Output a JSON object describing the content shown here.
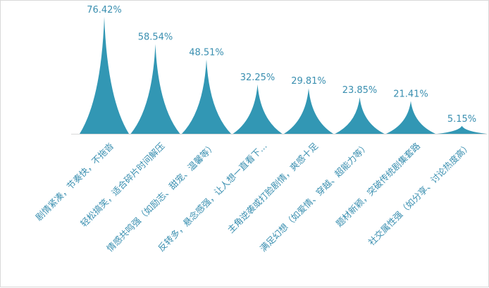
{
  "chart_data": {
    "type": "bar",
    "shape": "pointed-spike",
    "categories": [
      "剧情紧凑，节奏快，不拖沓",
      "轻松搞笑，适合碎片时间解压",
      "情感共鸣强（如励志、甜宠、温馨等）",
      "反转多，悬念感强，让人想一直看下...",
      "主角逆袭或打脸剧情，爽感十足",
      "满足幻想（如爱情、穿越、超能力等）",
      "题材新颖，突破传统剧集套路",
      "社交属性强（如分享、讨论热度高）"
    ],
    "series": [
      {
        "values": [
          76.42,
          58.54,
          48.51,
          32.25,
          29.81,
          23.85,
          21.41,
          5.15
        ],
        "data_labels": [
          "76.42%",
          "58.54%",
          "48.51%",
          "32.25%",
          "29.81%",
          "23.85%",
          "21.41%",
          "5.15%"
        ]
      }
    ],
    "ylim": [
      0,
      80
    ],
    "grid": false,
    "legend": "none",
    "colors": {
      "bar": "#3297b4",
      "value_label": "#3a8fb0",
      "category_label": "#3a8fb0",
      "axis": "#d9d9d9"
    }
  }
}
